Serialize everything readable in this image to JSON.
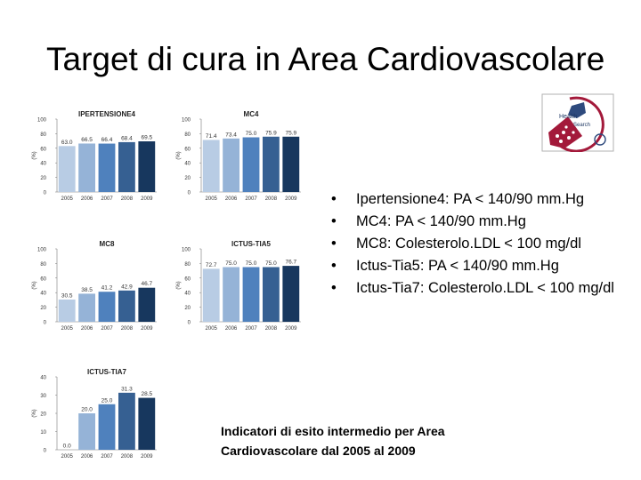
{
  "slide": {
    "title": "Target di cura in Area Cardiovascolare",
    "caption": "Indicatori di esito intermedio per Area Cardiovascolare  dal 2005 al 2009",
    "bullets": [
      "Ipertensione4: PA < 140/90 mm.Hg",
      "MC4: PA < 140/90 mm.Hg",
      "MC8: Colesterolo.LDL < 100 mg/dl",
      "Ictus-Tia5: PA < 140/90 mm.Hg",
      "Ictus-Tia7: Colesterolo.LDL < 100 mg/dl"
    ],
    "bullet_symbol": "•",
    "logo": {
      "text_top": "Health",
      "text_bottom": "Search"
    }
  },
  "colors": {
    "bar": [
      "#b8cce4",
      "#95b3d7",
      "#4f81bd",
      "#366092",
      "#17375e"
    ]
  },
  "chart_data": [
    {
      "type": "bar",
      "title": "IPERTENSIONE4",
      "ylabel": "(%)",
      "ylim": [
        0,
        100
      ],
      "yticks": [
        0,
        20,
        40,
        60,
        80,
        100
      ],
      "categories": [
        "2005",
        "2006",
        "2007",
        "2008",
        "2009"
      ],
      "values": [
        63.0,
        66.5,
        66.4,
        68.4,
        69.5
      ]
    },
    {
      "type": "bar",
      "title": "MC4",
      "ylabel": "(%)",
      "ylim": [
        0,
        100
      ],
      "yticks": [
        0,
        20,
        40,
        60,
        80,
        100
      ],
      "categories": [
        "2005",
        "2006",
        "2007",
        "2008",
        "2009"
      ],
      "values": [
        71.4,
        73.4,
        75.0,
        75.9,
        75.9
      ]
    },
    {
      "type": "bar",
      "title": "MC8",
      "ylabel": "(%)",
      "ylim": [
        0,
        100
      ],
      "yticks": [
        0,
        20,
        40,
        60,
        80,
        100
      ],
      "categories": [
        "2005",
        "2006",
        "2007",
        "2008",
        "2009"
      ],
      "values": [
        30.5,
        38.5,
        41.2,
        42.9,
        46.7
      ]
    },
    {
      "type": "bar",
      "title": "ICTUS-TIA5",
      "ylabel": "(%)",
      "ylim": [
        0,
        100
      ],
      "yticks": [
        0,
        20,
        40,
        60,
        80,
        100
      ],
      "categories": [
        "2005",
        "2006",
        "2007",
        "2008",
        "2009"
      ],
      "values": [
        72.7,
        75.0,
        75.0,
        75.0,
        76.7
      ]
    },
    {
      "type": "bar",
      "title": "ICTUS-TIA7",
      "ylabel": "(%)",
      "ylim": [
        0,
        40
      ],
      "yticks": [
        0,
        10,
        20,
        30,
        40
      ],
      "categories": [
        "2005",
        "2006",
        "2007",
        "2008",
        "2009"
      ],
      "values": [
        0.0,
        20.0,
        25.0,
        31.3,
        28.5
      ]
    }
  ]
}
